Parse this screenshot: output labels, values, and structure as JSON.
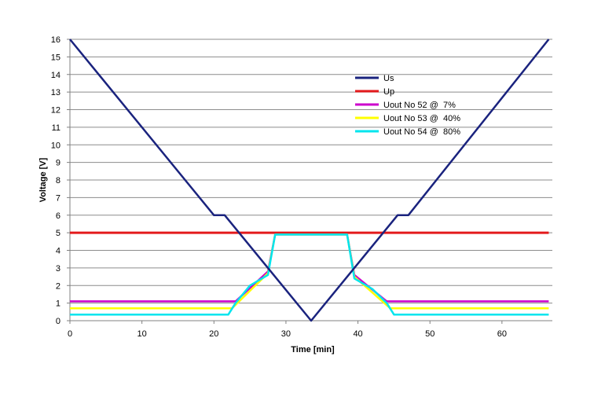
{
  "chart_data": {
    "type": "line",
    "title": "",
    "xlabel": "Time [min]",
    "ylabel": "Voltage [V]",
    "xlim": [
      0,
      67
    ],
    "ylim": [
      0,
      16
    ],
    "x_ticks": [
      0,
      10,
      20,
      30,
      40,
      50,
      60
    ],
    "x_tick_labels": [
      "0",
      "10",
      "20",
      "30",
      "40",
      "50",
      "60"
    ],
    "y_ticks": [
      0,
      1,
      2,
      3,
      4,
      5,
      6,
      7,
      8,
      9,
      10,
      11,
      12,
      13,
      14,
      15,
      16
    ],
    "y_tick_labels": [
      "0",
      "1",
      "2",
      "3",
      "4",
      "5",
      "6",
      "7",
      "8",
      "9",
      "10",
      "11",
      "12",
      "13",
      "14",
      "15",
      "16"
    ],
    "grid": "horizontal",
    "legend_position": "top-right",
    "series": [
      {
        "name": "Us",
        "color": "#1a237e",
        "x": [
          0,
          20,
          21.5,
          33.5,
          45.5,
          47,
          66.5
        ],
        "y": [
          16,
          6,
          6,
          0,
          6,
          6,
          16
        ]
      },
      {
        "name": "Up",
        "color": "#e31a1c",
        "x": [
          0,
          66.5
        ],
        "y": [
          5,
          5
        ]
      },
      {
        "name": "Uout No 52 @  7%",
        "color": "#cc00cc",
        "x": [
          0,
          23,
          27.5,
          28.5,
          38.5,
          39.5,
          44,
          66.5
        ],
        "y": [
          1.1,
          1.1,
          2.8,
          4.9,
          4.9,
          2.6,
          1.1,
          1.1
        ]
      },
      {
        "name": "Uout No 53 @  40%",
        "color": "#ffff00",
        "x": [
          0,
          22.5,
          27.5,
          28.5,
          38.5,
          39.5,
          44.5,
          66.5
        ],
        "y": [
          0.7,
          0.7,
          2.7,
          4.9,
          4.9,
          2.5,
          0.7,
          0.7
        ]
      },
      {
        "name": "Uout No 54 @  80%",
        "color": "#00e5ee",
        "x": [
          0,
          22,
          23,
          25,
          27.5,
          28.5,
          38.5,
          39.5,
          42,
          44,
          45,
          66.5
        ],
        "y": [
          0.35,
          0.35,
          1.0,
          2.0,
          2.6,
          4.9,
          4.9,
          2.4,
          1.8,
          1.0,
          0.35,
          0.35
        ]
      }
    ]
  }
}
